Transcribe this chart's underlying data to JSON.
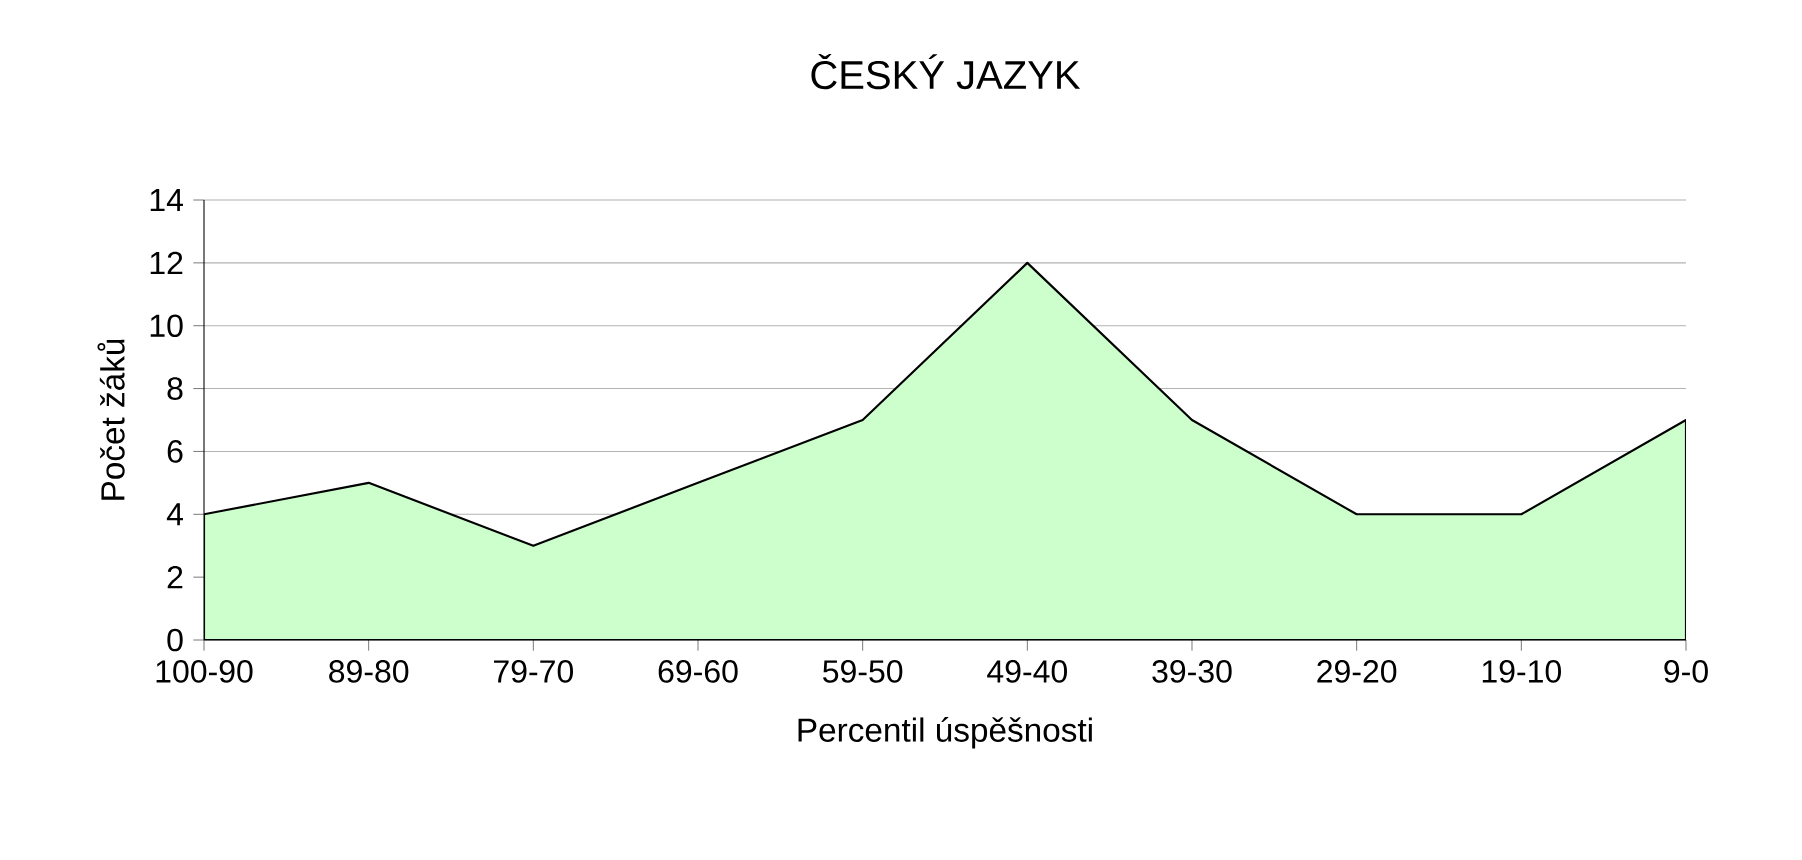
{
  "chart_data": {
    "type": "area",
    "title": "ČESKÝ JAZYK",
    "xlabel": "Percentil úspěšnosti",
    "ylabel": "Počet žáků",
    "categories": [
      "100-90",
      "89-80",
      "79-70",
      "69-60",
      "59-50",
      "49-40",
      "39-30",
      "29-20",
      "19-10",
      "9-0"
    ],
    "values": [
      4,
      5,
      3,
      5,
      7,
      12,
      7,
      4,
      4,
      7
    ],
    "color": "#ccffcc",
    "ylim": [
      0,
      14
    ],
    "yticks": [
      0,
      2,
      4,
      6,
      8,
      10,
      12,
      14
    ],
    "grid": "y"
  }
}
